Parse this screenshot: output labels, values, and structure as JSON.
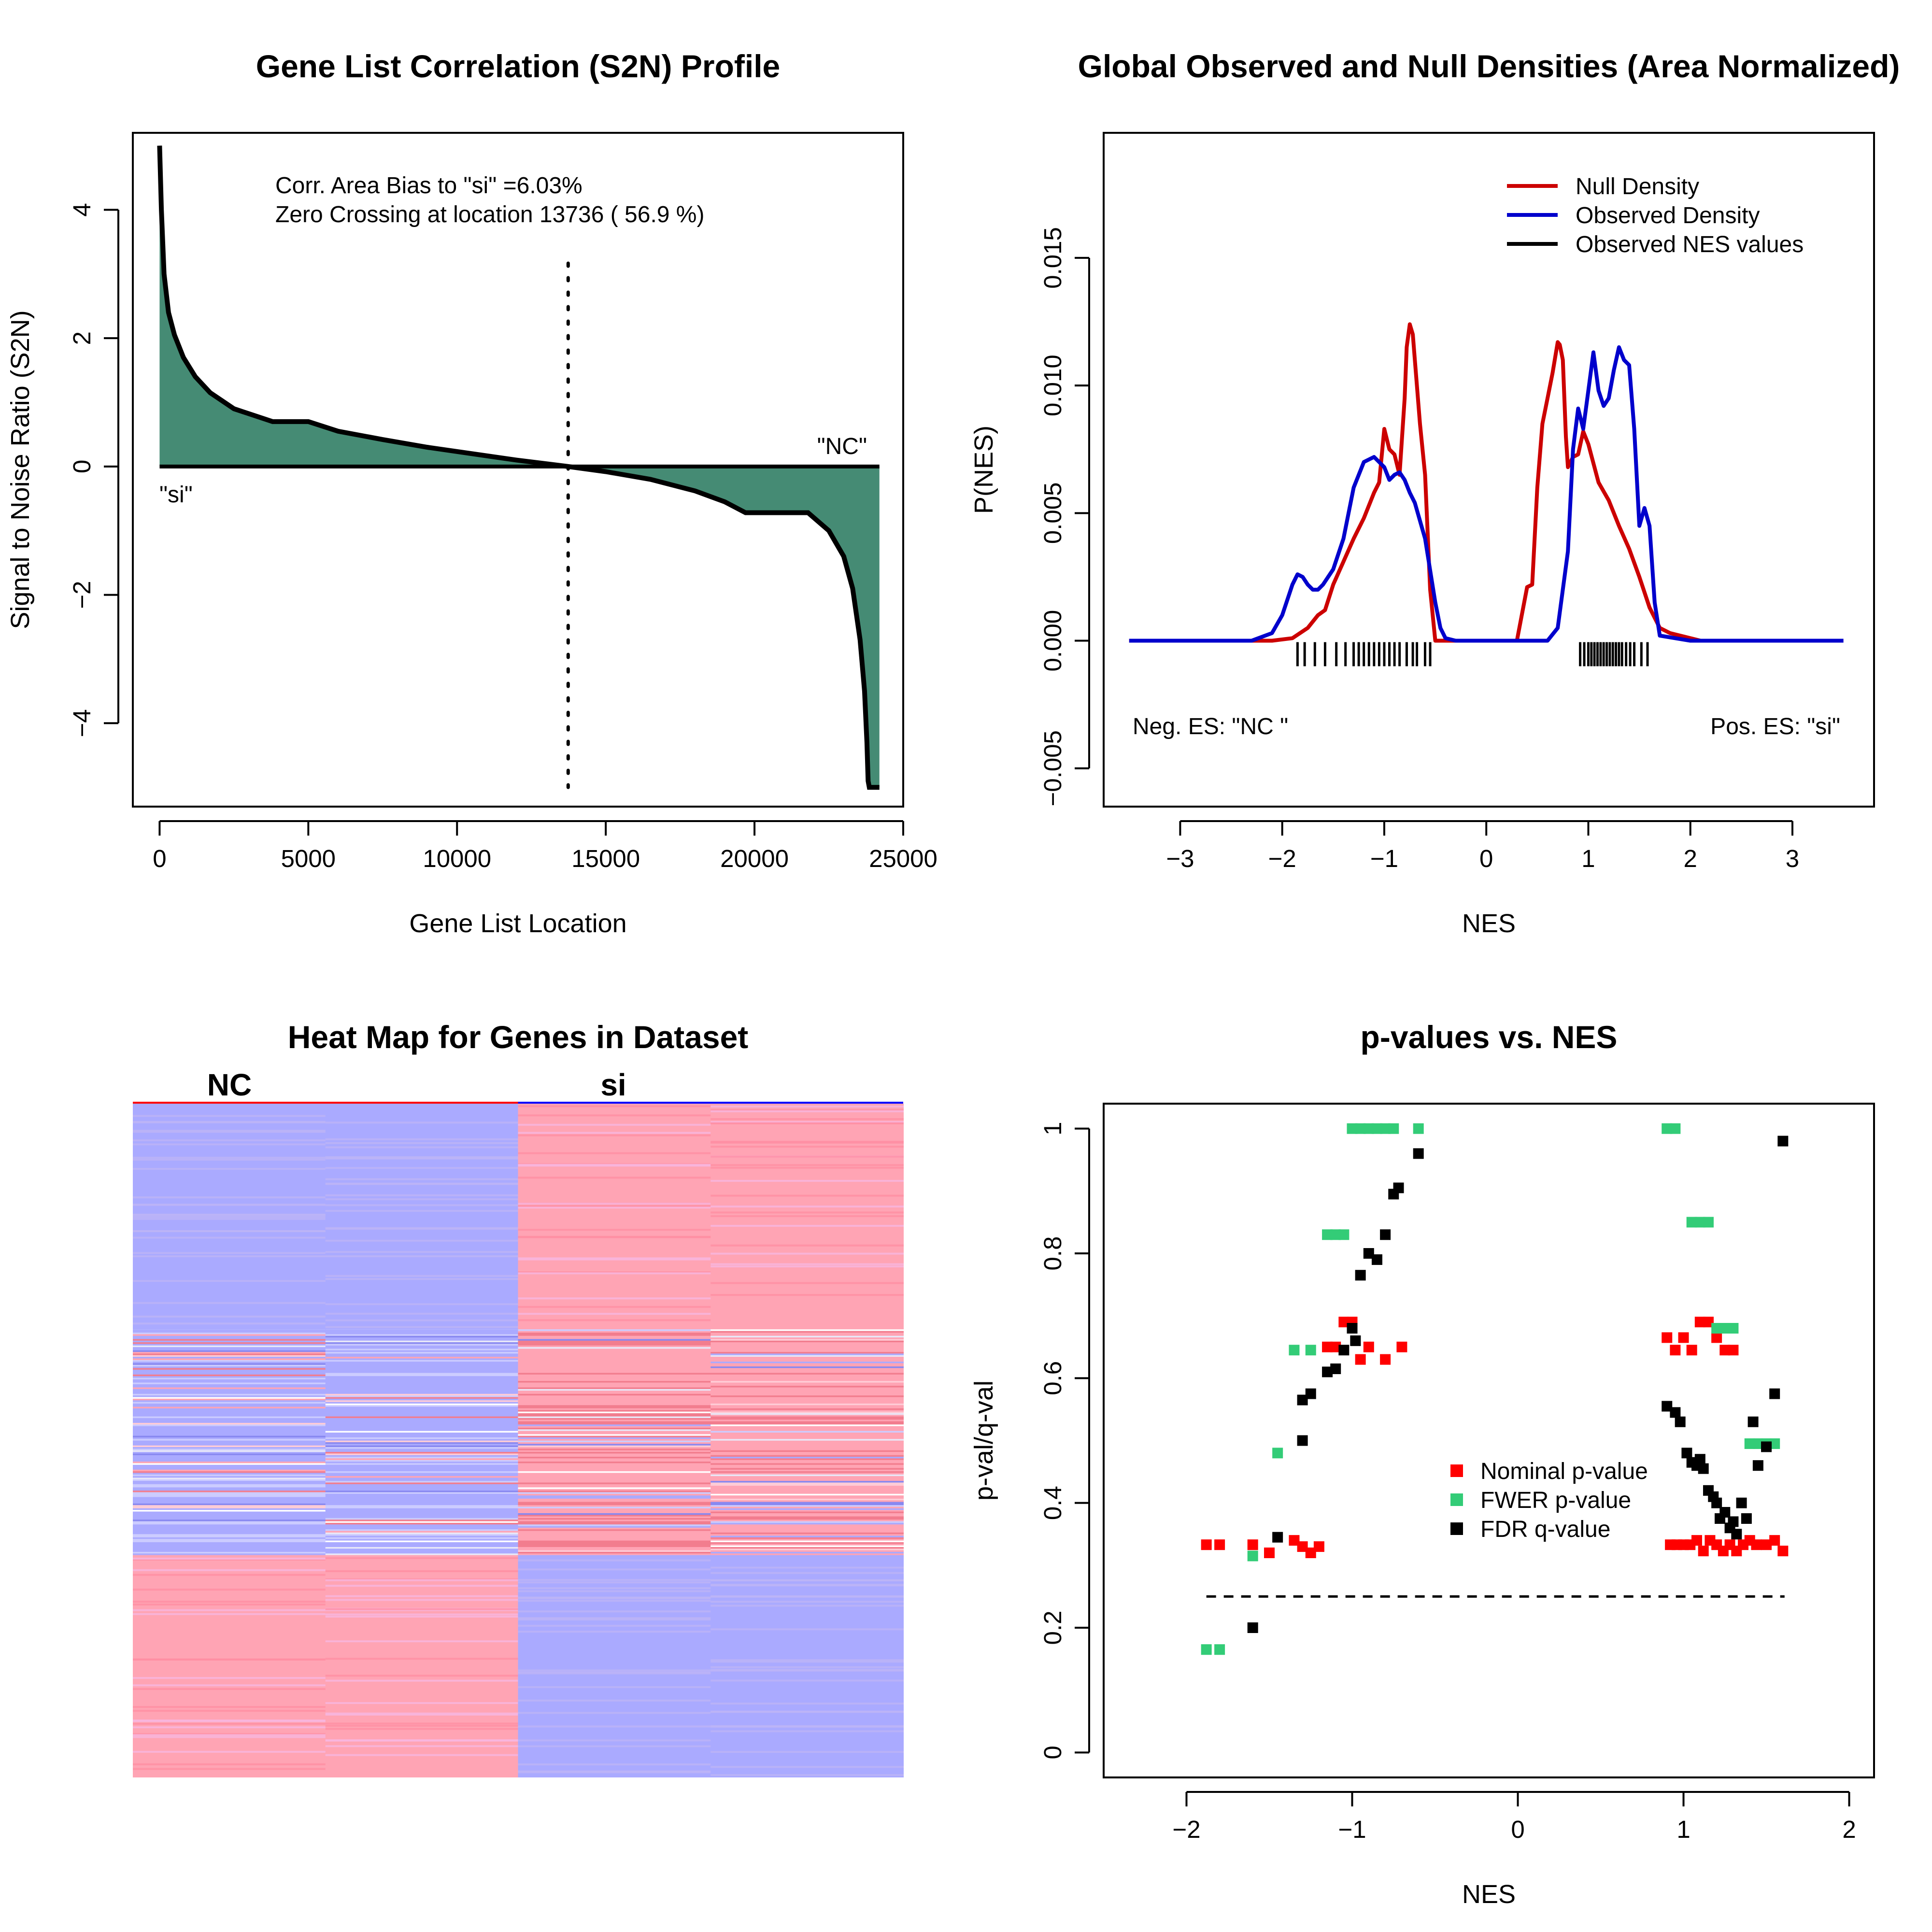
{
  "chart_data": [
    {
      "type": "area",
      "title": "Gene List Correlation (S2N) Profile",
      "xlabel": "Gene List Location",
      "ylabel": "Signal to Noise Ratio (S2N)",
      "xlim": [
        -900,
        25000
      ],
      "ylim": [
        -5.3,
        5.2
      ],
      "xticks": [
        0,
        5000,
        10000,
        15000,
        20000,
        25000
      ],
      "yticks": [
        -4,
        -2,
        0,
        2,
        4
      ],
      "x": [
        0,
        60,
        150,
        300,
        500,
        800,
        1200,
        1700,
        2500,
        3800,
        5000,
        6000,
        7500,
        9000,
        10500,
        12000,
        13736,
        15000,
        16500,
        18000,
        19000,
        19700,
        21800,
        22500,
        23000,
        23300,
        23550,
        23700,
        23780,
        23820,
        23860,
        24200
      ],
      "y": [
        5.0,
        4.0,
        3.0,
        2.4,
        2.05,
        1.7,
        1.4,
        1.15,
        0.9,
        0.7,
        0.7,
        0.55,
        0.42,
        0.3,
        0.2,
        0.1,
        0.0,
        -0.08,
        -0.2,
        -0.38,
        -0.55,
        -0.72,
        -0.72,
        -1.0,
        -1.4,
        -1.9,
        -2.7,
        -3.5,
        -4.3,
        -4.9,
        -5.0,
        -5.0
      ],
      "zero_crossing": 13736,
      "annotations": [
        "Corr. Area Bias to \"si\" =6.03%",
        "Zero Crossing at location  13736  ( 56.9  %)",
        "\"si\"",
        "\"NC\""
      ],
      "colors": {
        "fill": "#458B74",
        "line": "#000000"
      }
    },
    {
      "type": "line",
      "title": "Global Observed and Null Densities (Area Normalized)",
      "xlabel": "NES",
      "ylabel": "P(NES)",
      "xlim": [
        -3.75,
        3.8
      ],
      "ylim": [
        -0.0065,
        0.0199
      ],
      "xticks": [
        -3,
        -2,
        -1,
        0,
        1,
        2,
        3
      ],
      "yticks": [
        -0.005,
        0.0,
        0.005,
        0.01,
        0.015
      ],
      "ytick_labels": [
        "−0.005",
        "0.000",
        "0.005",
        "0.010",
        "0.015"
      ],
      "legend": [
        "Null Density",
        "Observed Density",
        "Observed NES values"
      ],
      "legend_position": "top-right",
      "series": [
        {
          "name": "Null Density",
          "color": "#CC0000",
          "x": [
            -3.5,
            -2.1,
            -1.9,
            -1.75,
            -1.65,
            -1.58,
            -1.5,
            -1.4,
            -1.3,
            -1.2,
            -1.1,
            -1.05,
            -1.0,
            -0.95,
            -0.9,
            -0.85,
            -0.8,
            -0.78,
            -0.75,
            -0.72,
            -0.7,
            -0.65,
            -0.6,
            -0.55,
            -0.5,
            -0.4,
            -0.3,
            0.3,
            0.4,
            0.45,
            0.5,
            0.55,
            0.6,
            0.65,
            0.7,
            0.72,
            0.75,
            0.78,
            0.8,
            0.85,
            0.9,
            0.95,
            1.0,
            1.1,
            1.2,
            1.3,
            1.4,
            1.5,
            1.6,
            1.7,
            1.8,
            1.9,
            2.0,
            2.1,
            3.5
          ],
          "y": [
            0.0,
            0.0,
            0.0001,
            0.0005,
            0.001,
            0.0012,
            0.0022,
            0.0031,
            0.004,
            0.0048,
            0.0058,
            0.0062,
            0.0083,
            0.0075,
            0.0073,
            0.0065,
            0.0095,
            0.0115,
            0.0124,
            0.012,
            0.011,
            0.0085,
            0.0065,
            0.002,
            0.0,
            0.0,
            0.0,
            0.0,
            0.0021,
            0.0022,
            0.006,
            0.0085,
            0.0095,
            0.0105,
            0.0117,
            0.0116,
            0.011,
            0.008,
            0.0068,
            0.0072,
            0.0073,
            0.0082,
            0.0077,
            0.0062,
            0.0055,
            0.0045,
            0.0036,
            0.0025,
            0.0013,
            0.0005,
            0.0003,
            0.0002,
            0.0001,
            0.0,
            0.0
          ]
        },
        {
          "name": "Observed Density",
          "color": "#0000CC",
          "x": [
            -3.5,
            -2.3,
            -2.1,
            -2.0,
            -1.9,
            -1.85,
            -1.8,
            -1.75,
            -1.7,
            -1.65,
            -1.6,
            -1.5,
            -1.4,
            -1.3,
            -1.2,
            -1.1,
            -1.0,
            -0.95,
            -0.9,
            -0.85,
            -0.8,
            -0.75,
            -0.7,
            -0.6,
            -0.5,
            -0.45,
            -0.4,
            -0.3,
            0.6,
            0.7,
            0.8,
            0.85,
            0.9,
            0.95,
            1.0,
            1.05,
            1.1,
            1.15,
            1.2,
            1.25,
            1.3,
            1.35,
            1.4,
            1.45,
            1.5,
            1.55,
            1.6,
            1.65,
            1.7,
            2.0,
            3.5
          ],
          "y": [
            0.0,
            0.0,
            0.0003,
            0.001,
            0.0022,
            0.0026,
            0.0025,
            0.0022,
            0.002,
            0.002,
            0.0022,
            0.0028,
            0.004,
            0.006,
            0.007,
            0.0072,
            0.0068,
            0.0063,
            0.0065,
            0.0066,
            0.0063,
            0.0058,
            0.0054,
            0.004,
            0.0015,
            0.0005,
            0.0001,
            0.0,
            0.0,
            0.0005,
            0.0035,
            0.0075,
            0.0091,
            0.0083,
            0.0098,
            0.0113,
            0.0098,
            0.0092,
            0.0095,
            0.0106,
            0.0115,
            0.011,
            0.0108,
            0.0083,
            0.0045,
            0.0052,
            0.0045,
            0.0015,
            0.0002,
            0.0,
            0.0
          ]
        }
      ],
      "nes_ticks": [
        -1.85,
        -1.78,
        -1.68,
        -1.58,
        -1.47,
        -1.38,
        -1.3,
        -1.25,
        -1.2,
        -1.15,
        -1.1,
        -1.05,
        -1.0,
        -0.95,
        -0.9,
        -0.85,
        -0.78,
        -0.72,
        -0.68,
        -0.6,
        -0.55,
        0.92,
        0.96,
        1.0,
        1.03,
        1.06,
        1.09,
        1.12,
        1.15,
        1.18,
        1.21,
        1.24,
        1.27,
        1.3,
        1.33,
        1.37,
        1.41,
        1.45,
        1.52,
        1.58
      ],
      "annotations": [
        "Neg. ES: \"NC \"",
        "Pos. ES: \"si\""
      ]
    },
    {
      "type": "heatmap",
      "title": "Heat Map for Genes in Dataset",
      "column_groups": [
        "NC",
        "si"
      ],
      "columns": 4,
      "blocks": [
        {
          "from": 0.0,
          "to": 0.335,
          "colors": [
            "#AAAAFF",
            "#AAAAFF",
            "#FFA4B4",
            "#FFA4B4"
          ]
        },
        {
          "from": 0.335,
          "to": 0.67,
          "colors": [
            "mixed",
            "mixed",
            "mixed",
            "mixed"
          ]
        },
        {
          "from": 0.67,
          "to": 1.0,
          "colors": [
            "#FFA4B4",
            "#FFA4B4",
            "#AAAAFF",
            "#AAAAFF"
          ]
        }
      ],
      "colors": {
        "blue": "#AAAAFF",
        "red": "#FFA4B4",
        "nc_bar": "#FF0000",
        "si_bar": "#0000FF"
      }
    },
    {
      "type": "scatter",
      "title": "p-values vs. NES",
      "xlabel": "NES",
      "ylabel": "p-val/q-val",
      "xlim": [
        -2.5,
        2.15
      ],
      "ylim": [
        -0.04,
        1.04
      ],
      "xticks": [
        -2,
        -1,
        0,
        1,
        2
      ],
      "yticks": [
        0.0,
        0.2,
        0.4,
        0.6,
        0.8,
        1.0
      ],
      "threshold": 0.25,
      "threshold_x": [
        -1.88,
        1.61
      ],
      "legend": [
        "Nominal p-value",
        "FWER p-value",
        "FDR q-value"
      ],
      "legend_position": "center-right",
      "series": [
        {
          "name": "Nominal p-value",
          "color": "#FF0000",
          "x": [
            -1.88,
            -1.8,
            -1.6,
            -1.5,
            -1.35,
            -1.3,
            -1.25,
            -1.2,
            -1.15,
            -1.1,
            -1.05,
            -1.0,
            -0.95,
            -0.9,
            -0.8,
            -0.7,
            0.9,
            0.95,
            1.0,
            1.05,
            1.1,
            1.15,
            1.2,
            1.25,
            1.3,
            0.92,
            0.96,
            1.0,
            1.04,
            1.08,
            1.12,
            1.16,
            1.2,
            1.24,
            1.28,
            1.32,
            1.36,
            1.4,
            1.44,
            1.5,
            1.55,
            1.6
          ],
          "y": [
            0.333,
            0.333,
            0.333,
            0.32,
            0.34,
            0.33,
            0.32,
            0.33,
            0.65,
            0.65,
            0.69,
            0.69,
            0.63,
            0.65,
            0.63,
            0.65,
            0.665,
            0.645,
            0.665,
            0.645,
            0.69,
            0.69,
            0.665,
            0.645,
            0.645,
            0.333,
            0.333,
            0.333,
            0.333,
            0.34,
            0.323,
            0.34,
            0.333,
            0.323,
            0.333,
            0.323,
            0.333,
            0.34,
            0.333,
            0.333,
            0.34,
            0.323
          ]
        },
        {
          "name": "FWER p-value",
          "color": "#33CC77",
          "x": [
            -1.88,
            -1.8,
            -1.6,
            -1.45,
            -1.35,
            -1.25,
            -1.15,
            -1.1,
            -1.05,
            -1.0,
            -0.95,
            -0.9,
            -0.85,
            -0.8,
            -0.75,
            -0.6,
            0.9,
            0.95,
            1.05,
            1.1,
            1.15,
            1.2,
            1.25,
            1.3,
            1.4,
            1.45,
            1.5,
            1.55
          ],
          "y": [
            0.165,
            0.165,
            0.315,
            0.48,
            0.645,
            0.645,
            0.83,
            0.83,
            0.83,
            1.0,
            1.0,
            1.0,
            1.0,
            1.0,
            1.0,
            1.0,
            1.0,
            1.0,
            0.85,
            0.85,
            0.85,
            0.68,
            0.68,
            0.68,
            0.495,
            0.495,
            0.495,
            0.495
          ]
        },
        {
          "name": "FDR q-value",
          "color": "#000000",
          "x": [
            -1.6,
            -1.45,
            -1.3,
            -1.3,
            -1.25,
            -1.15,
            -1.1,
            -1.05,
            -1.0,
            -0.98,
            -0.95,
            -0.9,
            -0.85,
            -0.8,
            -0.75,
            -0.72,
            -0.6,
            0.9,
            0.95,
            0.98,
            1.02,
            1.05,
            1.08,
            1.1,
            1.12,
            1.15,
            1.18,
            1.2,
            1.22,
            1.25,
            1.28,
            1.3,
            1.32,
            1.35,
            1.38,
            1.42,
            1.45,
            1.5,
            1.55,
            1.6
          ],
          "y": [
            0.2,
            0.345,
            0.5,
            0.565,
            0.575,
            0.61,
            0.615,
            0.645,
            0.68,
            0.66,
            0.765,
            0.8,
            0.79,
            0.83,
            0.895,
            0.905,
            0.96,
            0.555,
            0.545,
            0.53,
            0.48,
            0.465,
            0.46,
            0.47,
            0.455,
            0.42,
            0.41,
            0.4,
            0.375,
            0.385,
            0.36,
            0.37,
            0.35,
            0.4,
            0.375,
            0.53,
            0.46,
            0.49,
            0.575,
            0.98
          ]
        }
      ]
    }
  ]
}
